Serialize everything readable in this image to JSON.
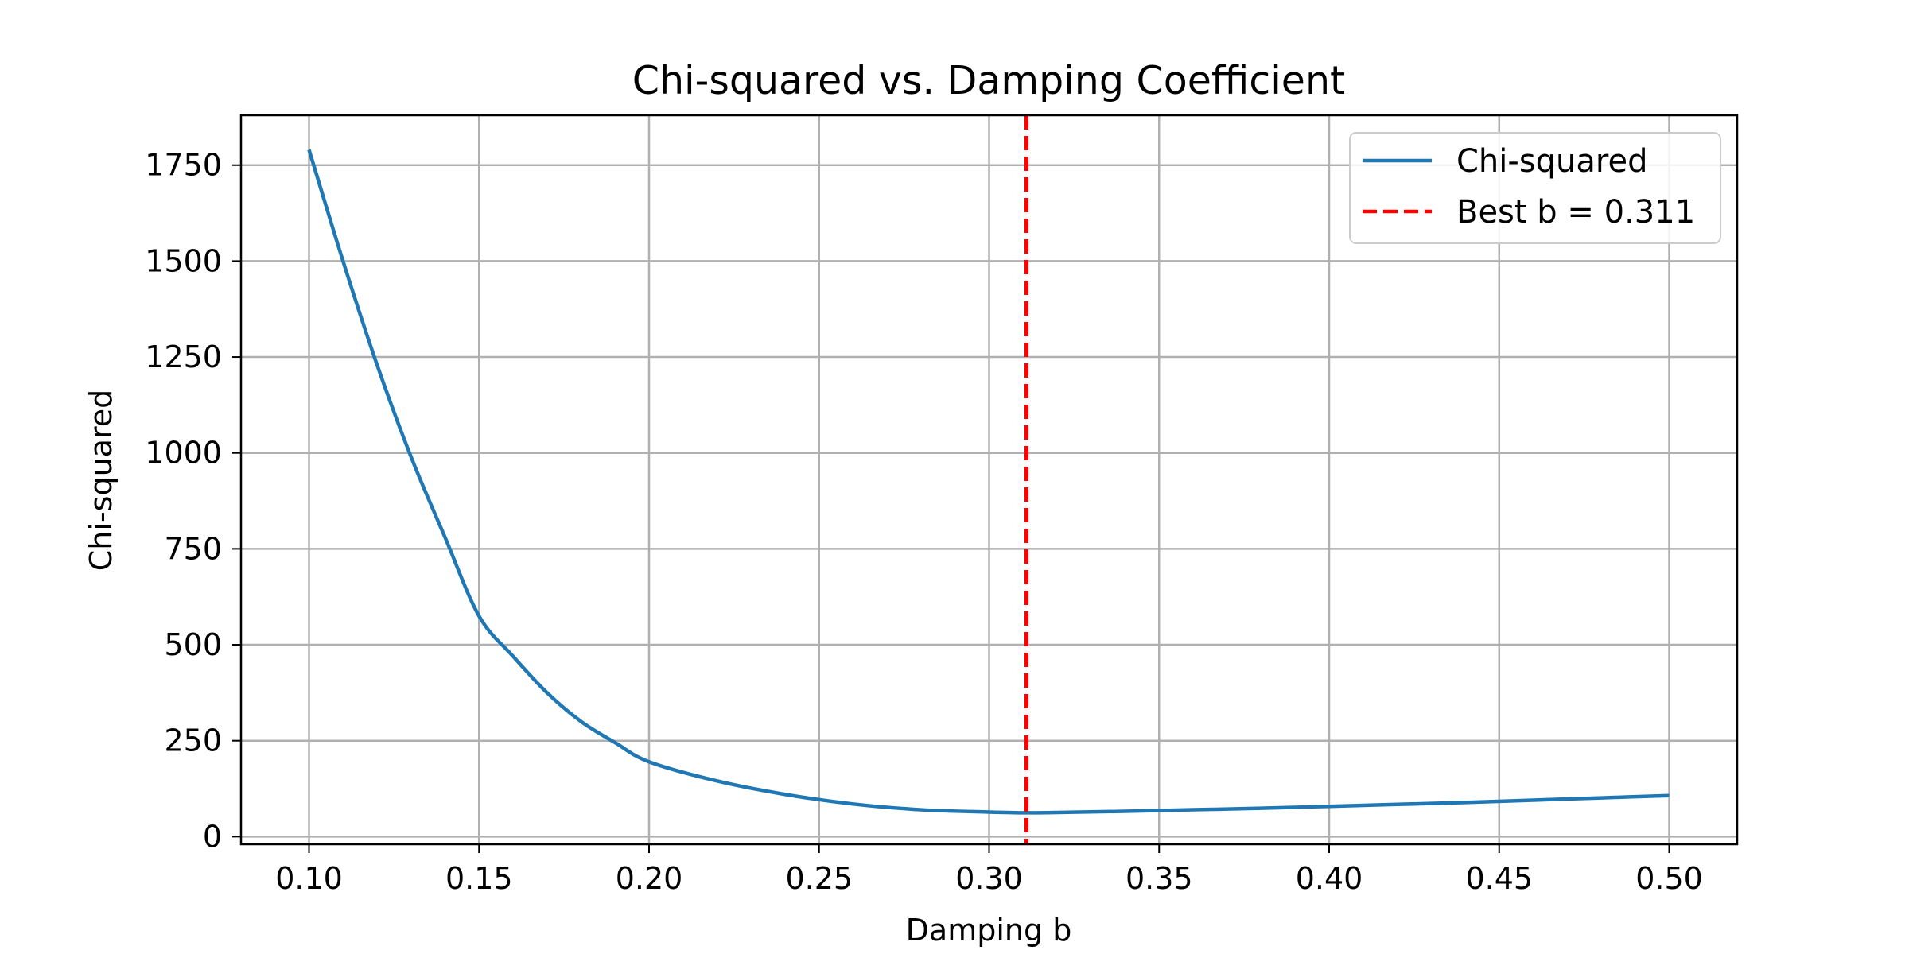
{
  "chart_data": {
    "type": "line",
    "title": "Chi-squared vs. Damping Coefficient",
    "xlabel": "Damping b",
    "ylabel": "Chi-squared",
    "xlim": [
      0.08,
      0.52
    ],
    "ylim": [
      -20,
      1880
    ],
    "x_ticks": [
      0.1,
      0.15,
      0.2,
      0.25,
      0.3,
      0.35,
      0.4,
      0.45,
      0.5
    ],
    "x_tick_labels": [
      "0.10",
      "0.15",
      "0.20",
      "0.25",
      "0.30",
      "0.35",
      "0.40",
      "0.45",
      "0.50"
    ],
    "y_ticks": [
      0,
      250,
      500,
      750,
      1000,
      1250,
      1500,
      1750
    ],
    "y_tick_labels": [
      "0",
      "250",
      "500",
      "750",
      "1000",
      "1250",
      "1500",
      "1750"
    ],
    "grid": true,
    "legend_position": "top-right",
    "series": [
      {
        "name": "Chi-squared",
        "color": "#1f77b4",
        "style": "solid",
        "x": [
          0.1,
          0.11,
          0.12,
          0.13,
          0.14,
          0.15,
          0.16,
          0.17,
          0.18,
          0.19,
          0.2,
          0.22,
          0.24,
          0.26,
          0.28,
          0.3,
          0.311,
          0.32,
          0.34,
          0.36,
          0.38,
          0.4,
          0.42,
          0.44,
          0.46,
          0.48,
          0.5
        ],
        "y": [
          1790,
          1500,
          1230,
          990,
          780,
          575,
          470,
          375,
          300,
          245,
          195,
          145,
          110,
          85,
          70,
          64,
          62,
          63,
          66,
          70,
          74,
          79,
          84,
          89,
          95,
          101,
          107
        ]
      }
    ],
    "reference_lines": [
      {
        "orientation": "vertical",
        "x": 0.311,
        "name": "Best b = 0.311",
        "color": "#ff0000",
        "style": "dashed"
      }
    ]
  }
}
